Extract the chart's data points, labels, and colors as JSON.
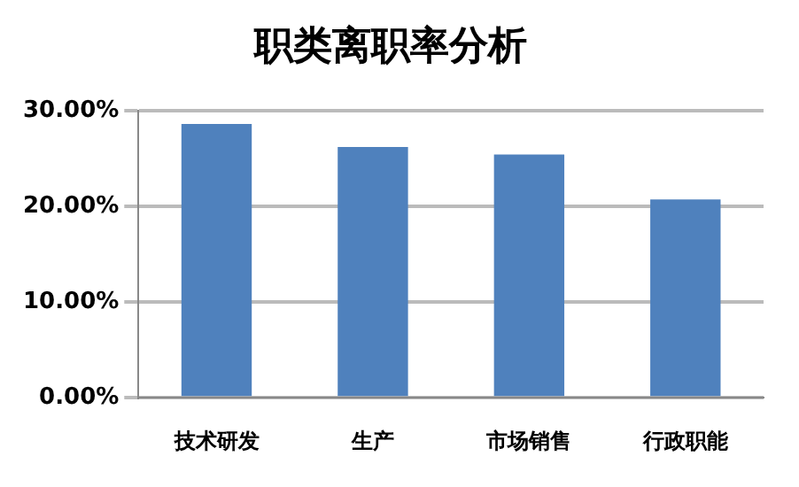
{
  "chart_data": {
    "type": "bar",
    "title": "职类离职率分析",
    "categories": [
      "技术研发",
      "生产",
      "市场销售",
      "行政职能"
    ],
    "values": [
      28.6,
      26.2,
      25.4,
      20.7
    ],
    "color": "#4f81bd",
    "ylim": [
      0,
      30
    ],
    "yticks": [
      {
        "value": 0,
        "label": "0.00%"
      },
      {
        "value": 10,
        "label": "10.00%"
      },
      {
        "value": 20,
        "label": "20.00%"
      },
      {
        "value": 30,
        "label": "30.00%"
      }
    ],
    "grid": "y",
    "legend": false
  }
}
